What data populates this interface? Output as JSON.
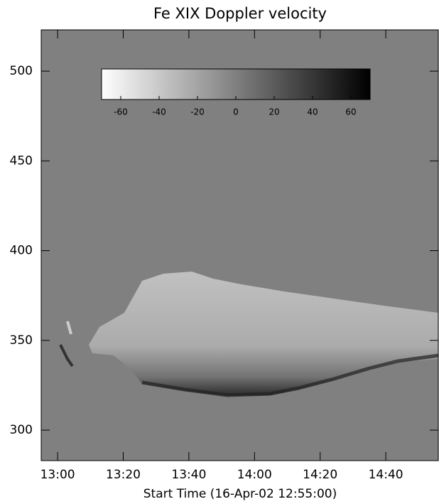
{
  "chart_data": {
    "type": "image",
    "title": "Fe XIX Doppler velocity",
    "xlabel": "Start Time (16-Apr-02 12:55:00)",
    "xlim": [
      0,
      121
    ],
    "xticks": [
      {
        "value": 5,
        "label": "13:00"
      },
      {
        "value": 25,
        "label": "13:20"
      },
      {
        "value": 45,
        "label": "13:40"
      },
      {
        "value": 65,
        "label": "14:00"
      },
      {
        "value": 85,
        "label": "14:20"
      },
      {
        "value": 105,
        "label": "14:40"
      }
    ],
    "ylim": [
      283,
      523
    ],
    "yticks": [
      300,
      350,
      400,
      450,
      500
    ],
    "background": "#808080",
    "colorbar": {
      "lim": [
        -70,
        70
      ],
      "ticks": [
        -60,
        -40,
        -20,
        0,
        20,
        40,
        60
      ],
      "colors": [
        "#ffffff",
        "#000000"
      ]
    }
  }
}
